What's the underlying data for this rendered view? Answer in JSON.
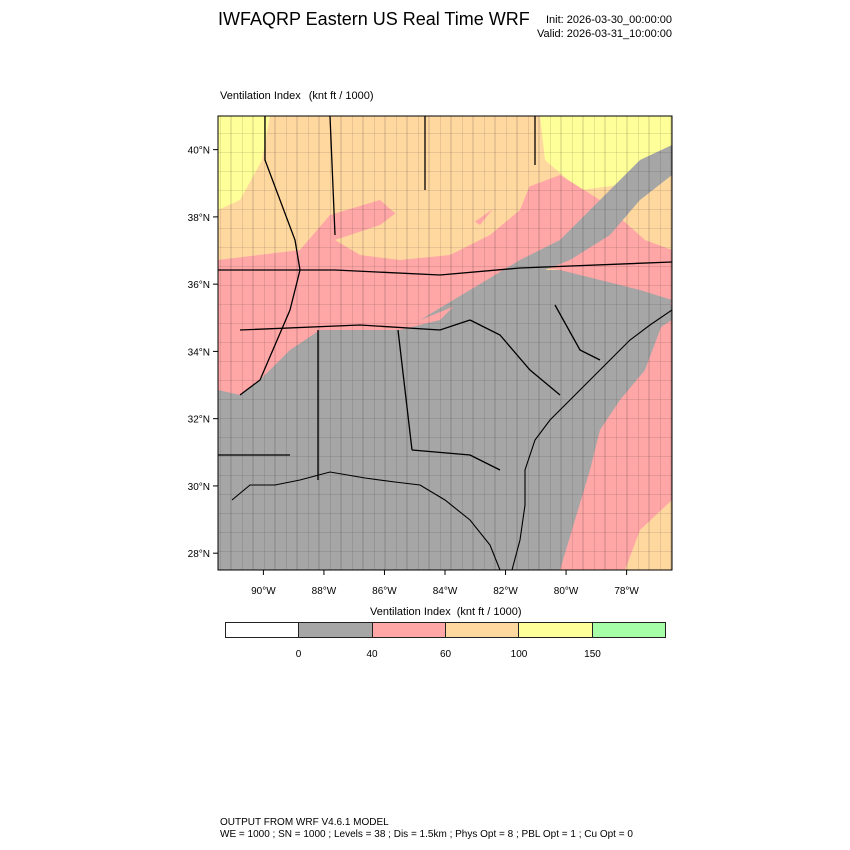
{
  "title": "IWFAQRP Eastern US Real Time WRF",
  "init": "Init: 2026-03-30_00:00:00",
  "valid": "Valid: 2026-03-31_10:00:00",
  "field": {
    "name": "Ventilation Index",
    "units": "(knt ft / 1000)"
  },
  "map": {
    "lon_ticks": [
      "90°W",
      "88°W",
      "86°W",
      "84°W",
      "82°W",
      "80°W",
      "78°W"
    ],
    "lat_ticks": [
      "40°N",
      "38°N",
      "36°N",
      "34°N",
      "32°N",
      "30°N",
      "28°N"
    ],
    "lon_range": [
      -91.5,
      -76.5
    ],
    "lat_range": [
      27.5,
      41.0
    ]
  },
  "colorbar": {
    "title": "Ventilation Index",
    "units": "(knt ft / 1000)",
    "colors": [
      "#ffffff",
      "#a6a6a6",
      "#ffa6a6",
      "#ffd8a0",
      "#ffff99",
      "#a6ffa6"
    ],
    "labels": [
      "0",
      "40",
      "60",
      "100",
      "150"
    ]
  },
  "footer": {
    "line1": "OUTPUT FROM WRF V4.6.1 MODEL",
    "line2": "WE = 1000 ; SN = 1000 ; Levels = 38 ; Dis = 1.5km ; Phys Opt = 8 ; PBL Opt = 1 ; Cu Opt = 0"
  }
}
